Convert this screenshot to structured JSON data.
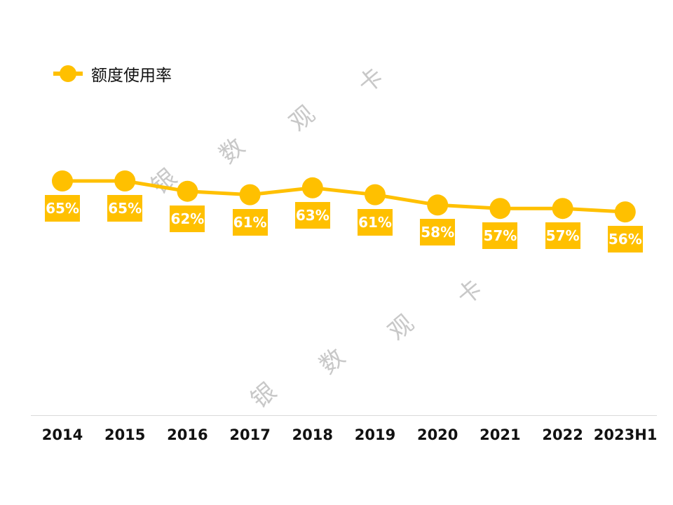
{
  "legend": {
    "label": "额度使用率"
  },
  "colors": {
    "series": "#FFC000",
    "axis": "#D9D9D9",
    "watermark": "#C8C8C8"
  },
  "watermark": {
    "chars": [
      "银",
      "数",
      "观",
      "卡"
    ]
  },
  "chart_data": {
    "type": "line",
    "title": "",
    "xlabel": "",
    "ylabel": "",
    "categories": [
      "2014",
      "2015",
      "2016",
      "2017",
      "2018",
      "2019",
      "2020",
      "2021",
      "2022",
      "2023H1"
    ],
    "series": [
      {
        "name": "额度使用率",
        "values": [
          65,
          65,
          62,
          61,
          63,
          61,
          58,
          57,
          57,
          56
        ],
        "unit": "%"
      }
    ],
    "data_labels": [
      "65%",
      "65%",
      "62%",
      "61%",
      "63%",
      "61%",
      "58%",
      "57%",
      "57%",
      "56%"
    ],
    "legend_position": "top-left",
    "grid": false,
    "y_axis_visible": false
  }
}
